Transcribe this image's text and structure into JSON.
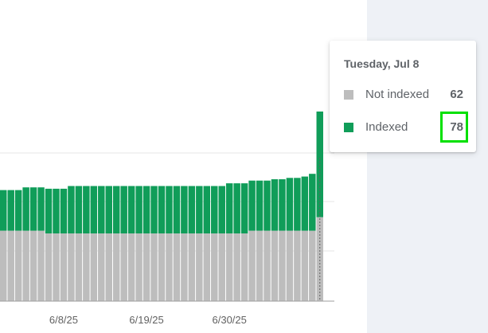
{
  "tooltip": {
    "date": "Tuesday, Jul 8",
    "rows": [
      {
        "label": "Not indexed",
        "value": "62",
        "color": "#bdbdbd"
      },
      {
        "label": "Indexed",
        "value": "78",
        "color": "#109d59"
      }
    ]
  },
  "chart_data": {
    "type": "bar",
    "stacked": true,
    "x_tick_labels": [
      "6/8/25",
      "6/19/25",
      "6/30/25"
    ],
    "series": [
      {
        "name": "Not indexed",
        "color": "#bdbdbd",
        "values": [
          52,
          52,
          52,
          52,
          52,
          52,
          50,
          50,
          50,
          50,
          50,
          50,
          50,
          50,
          50,
          50,
          50,
          50,
          50,
          50,
          50,
          50,
          50,
          50,
          50,
          50,
          50,
          50,
          50,
          50,
          50,
          50,
          50,
          52,
          52,
          52,
          52,
          52,
          52,
          52,
          52,
          52,
          62
        ]
      },
      {
        "name": "Indexed",
        "color": "#109d59",
        "values": [
          30,
          30,
          30,
          32,
          32,
          32,
          33,
          33,
          33,
          35,
          35,
          35,
          35,
          35,
          35,
          35,
          35,
          35,
          35,
          35,
          35,
          35,
          35,
          35,
          35,
          35,
          35,
          35,
          35,
          35,
          37,
          37,
          37,
          37,
          37,
          37,
          38,
          38,
          39,
          39,
          40,
          42,
          78
        ]
      }
    ],
    "grid": true,
    "highlighted_point": "Tuesday, Jul 8"
  }
}
